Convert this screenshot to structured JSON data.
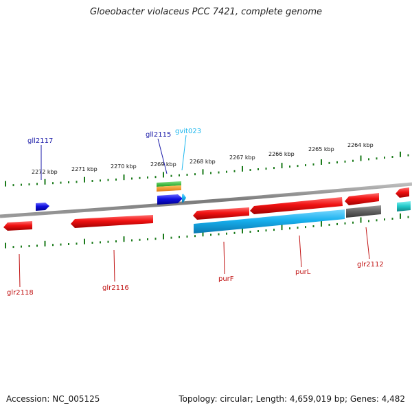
{
  "title": "Gloeobacter violaceus PCC 7421, complete genome",
  "footer": {
    "accession": "Accession: NC_005125",
    "topology": "Topology: circular; Length: 4,659,019 bp; Genes: 4,482"
  },
  "colors": {
    "reverse_gene": "#e81010",
    "forward_gene": "#1010dd",
    "rna_gene": "#18b6ee",
    "pseudo_gene": "#606060",
    "forward_label": "#1a1aa8",
    "reverse_label": "#c01010",
    "rna_label": "#18b6ee",
    "tick": "#1a7a1a",
    "backbone": "#888888"
  },
  "scale": {
    "tick_labels": [
      "2272 kbp",
      "2271 kbp",
      "2270 kbp",
      "2269 kbp",
      "2268 kbp",
      "2267 kbp",
      "2266 kbp",
      "2265 kbp",
      "2264 kbp"
    ]
  },
  "gene_labels": {
    "top": [
      {
        "text": "gll2117",
        "strand": "forward"
      },
      {
        "text": "gll2115",
        "strand": "forward"
      },
      {
        "text": "gvit023",
        "strand": "rna"
      }
    ],
    "bottom": [
      {
        "text": "glr2118",
        "strand": "reverse"
      },
      {
        "text": "glr2116",
        "strand": "reverse"
      },
      {
        "text": "purF",
        "strand": "reverse"
      },
      {
        "text": "purL",
        "strand": "reverse"
      },
      {
        "text": "glr2112",
        "strand": "reverse"
      }
    ]
  }
}
